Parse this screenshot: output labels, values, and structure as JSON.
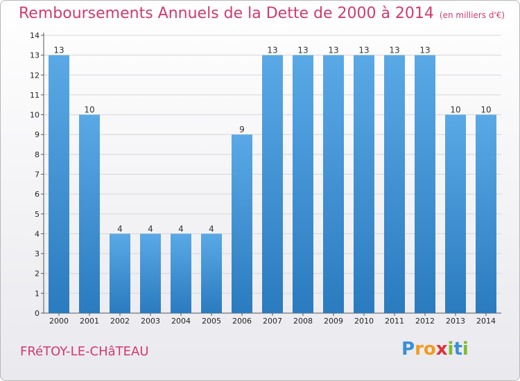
{
  "header": {
    "title": "Remboursements Annuels de la Dette de 2000 à 2014",
    "subtitle": "(en milliers d'€)"
  },
  "footer": {
    "place": "FRéTOY-LE-CHâTEAU",
    "logo": "Proxiti"
  },
  "colors": {
    "accent": "#d13a6b",
    "bar_top": "#5aa9e6",
    "bar_bottom": "#2a7bbf"
  },
  "chart_data": {
    "type": "bar",
    "title": "Remboursements Annuels de la Dette de 2000 à 2014",
    "xlabel": "",
    "ylabel": "",
    "ylim": [
      0,
      14
    ],
    "yticks": [
      0,
      1,
      2,
      3,
      4,
      5,
      6,
      7,
      8,
      9,
      10,
      11,
      12,
      13,
      14
    ],
    "grid": true,
    "categories": [
      "2000",
      "2001",
      "2002",
      "2003",
      "2004",
      "2005",
      "2006",
      "2007",
      "2008",
      "2009",
      "2010",
      "2011",
      "2012",
      "2013",
      "2014"
    ],
    "values": [
      13,
      10,
      4,
      4,
      4,
      4,
      9,
      13,
      13,
      13,
      13,
      13,
      13,
      10,
      10
    ]
  }
}
